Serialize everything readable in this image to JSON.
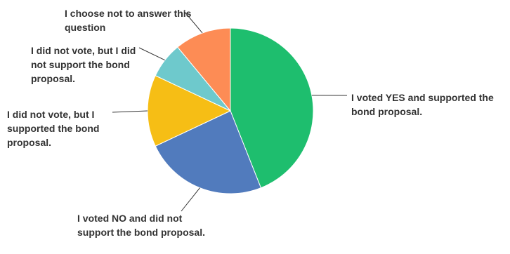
{
  "chart_data": {
    "type": "pie",
    "title": "",
    "slices": [
      {
        "label": "I voted YES and supported the bond proposal.",
        "value": 44,
        "color": "#1ebe6e"
      },
      {
        "label": "I voted NO and did not support the bond proposal.",
        "value": 24,
        "color": "#517bbd"
      },
      {
        "label": "I did not vote, but I supported the bond proposal.",
        "value": 14,
        "color": "#f6be15"
      },
      {
        "label": "I did not vote, but I did not support the bond proposal.",
        "value": 7,
        "color": "#6ec9cc"
      },
      {
        "label": "I choose not to answer this question",
        "value": 11,
        "color": "#fd8c55"
      }
    ],
    "legend": "none",
    "start_angle": "12 o'clock, clockwise"
  }
}
